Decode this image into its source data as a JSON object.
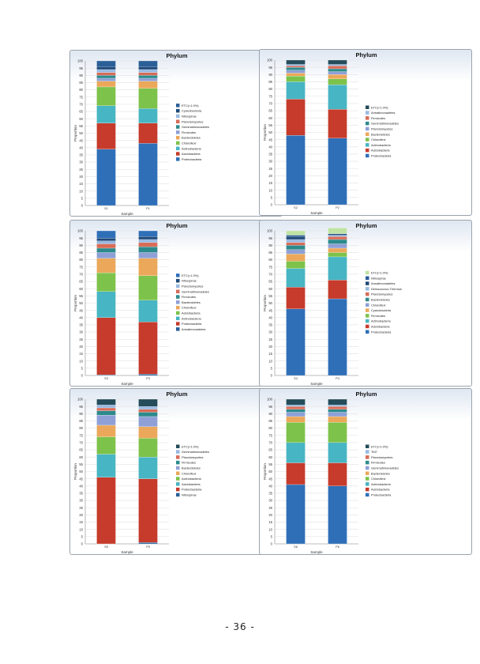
{
  "page": {
    "number": "- 36 -"
  },
  "chart_data": [
    {
      "type": "bar",
      "stacked": true,
      "title": "Phylum",
      "xlabel": "Sample",
      "ylabel": "Proportion",
      "ylim": [
        0,
        100
      ],
      "yticks_step": 5,
      "grid": true,
      "legend": "right",
      "categories": [
        "S1",
        "P1"
      ],
      "series": [
        {
          "name": "Proteobacteria",
          "color": "#2f6fb8",
          "values": [
            39,
            43
          ]
        },
        {
          "name": "Acidobacteria",
          "color": "#c63b2b",
          "values": [
            18,
            14
          ]
        },
        {
          "name": "Actinobacteria",
          "color": "#47b5c3",
          "values": [
            12,
            10
          ]
        },
        {
          "name": "Chloroflexi",
          "color": "#7dc24a",
          "values": [
            13,
            14
          ]
        },
        {
          "name": "Bacteroidetes",
          "color": "#eba85a",
          "values": [
            4,
            5
          ]
        },
        {
          "name": "Firmicutes",
          "color": "#8ea0d6",
          "values": [
            2,
            2
          ]
        },
        {
          "name": "Gemmatimonadetes",
          "color": "#2d8a8c",
          "values": [
            2,
            2
          ]
        },
        {
          "name": "Planctomycetes",
          "color": "#d86c57",
          "values": [
            2,
            2
          ]
        },
        {
          "name": "Nitrospirae",
          "color": "#98b9e2",
          "values": [
            2,
            2
          ]
        },
        {
          "name": "Cyanobacteria",
          "color": "#1f4a7a",
          "values": [
            2,
            2
          ]
        },
        {
          "name": "ETC(<1.0%)",
          "color": "#2b5f98",
          "values": [
            4,
            4
          ]
        }
      ]
    },
    {
      "type": "bar",
      "stacked": true,
      "title": "Phylum",
      "xlabel": "Sample",
      "ylabel": "Proportion",
      "ylim": [
        0,
        100
      ],
      "yticks_step": 5,
      "grid": true,
      "legend": "right",
      "categories": [
        "S2",
        "P2"
      ],
      "series": [
        {
          "name": "Proteobacteria",
          "color": "#2f6fb8",
          "values": [
            48,
            46
          ]
        },
        {
          "name": "Acidobacteria",
          "color": "#c63b2b",
          "values": [
            25,
            20
          ]
        },
        {
          "name": "Actinobacteria",
          "color": "#47b5c3",
          "values": [
            12,
            17
          ]
        },
        {
          "name": "Chloroflexi",
          "color": "#7dc24a",
          "values": [
            4,
            4
          ]
        },
        {
          "name": "Bacteroidetes",
          "color": "#eba85a",
          "values": [
            2,
            3
          ]
        },
        {
          "name": "Planctomycetes",
          "color": "#8ea0d6",
          "values": [
            2,
            2
          ]
        },
        {
          "name": "Gemmatimonadetes",
          "color": "#2d8a8c",
          "values": [
            2,
            2
          ]
        },
        {
          "name": "Firmicutes",
          "color": "#d86c57",
          "values": [
            1,
            2
          ]
        },
        {
          "name": "Armatimonadetes",
          "color": "#98b9e2",
          "values": [
            1,
            1
          ]
        },
        {
          "name": "ETC(<1.0%)",
          "color": "#244c5a",
          "values": [
            3,
            3
          ]
        }
      ]
    },
    {
      "type": "bar",
      "stacked": true,
      "title": "Phylum",
      "xlabel": "Sample",
      "ylabel": "Proportion",
      "ylim": [
        0,
        100
      ],
      "yticks_step": 5,
      "grid": true,
      "legend": "right",
      "categories": [
        "S3",
        "P3"
      ],
      "series": [
        {
          "name": "Armatimonadetes",
          "color": "#2b5f98",
          "values": [
            0.5,
            1
          ]
        },
        {
          "name": "Proteobacteria",
          "color": "#c63b2b",
          "values": [
            39.5,
            36
          ]
        },
        {
          "name": "Actinobacteria",
          "color": "#47b5c3",
          "values": [
            18,
            15
          ]
        },
        {
          "name": "Acidobacteria",
          "color": "#7dc24a",
          "values": [
            13,
            17
          ]
        },
        {
          "name": "Chloroflexi",
          "color": "#eba85a",
          "values": [
            10,
            12
          ]
        },
        {
          "name": "Bacteroidetes",
          "color": "#8ea0d6",
          "values": [
            4,
            4
          ]
        },
        {
          "name": "Firmicutes",
          "color": "#2d8a8c",
          "values": [
            3,
            4
          ]
        },
        {
          "name": "Gemmatimonadetes",
          "color": "#d86c57",
          "values": [
            3,
            3
          ]
        },
        {
          "name": "Planctomycetes",
          "color": "#98b9e2",
          "values": [
            2,
            2
          ]
        },
        {
          "name": "Nitrospirae",
          "color": "#1f4a7a",
          "values": [
            2,
            2
          ]
        },
        {
          "name": "ETC(<1.0%)",
          "color": "#2f6fb8",
          "values": [
            5,
            4
          ]
        }
      ]
    },
    {
      "type": "bar",
      "stacked": true,
      "title": "Phylum",
      "xlabel": "Sample",
      "ylabel": "Proportion",
      "ylim": [
        0,
        100
      ],
      "yticks_step": 5,
      "grid": true,
      "legend": "right",
      "categories": [
        "S4",
        "P4"
      ],
      "series": [
        {
          "name": "Proteobacteria",
          "color": "#2f6fb8",
          "values": [
            46,
            53
          ]
        },
        {
          "name": "Acidobacteria",
          "color": "#c63b2b",
          "values": [
            15,
            13
          ]
        },
        {
          "name": "Actinobacteria",
          "color": "#47b5c3",
          "values": [
            13,
            16
          ]
        },
        {
          "name": "Firmicutes",
          "color": "#7dc24a",
          "values": [
            5,
            3
          ]
        },
        {
          "name": "Cyanobacteria",
          "color": "#eba85a",
          "values": [
            5,
            3
          ]
        },
        {
          "name": "Chloroflexi",
          "color": "#8ea0d6",
          "values": [
            3,
            3
          ]
        },
        {
          "name": "Bacteroidetes",
          "color": "#2d8a8c",
          "values": [
            3,
            3
          ]
        },
        {
          "name": "Planctomycetes",
          "color": "#d86c57",
          "values": [
            2,
            2
          ]
        },
        {
          "name": "Deinococcus-Thermus",
          "color": "#98b9e2",
          "values": [
            2,
            1
          ]
        },
        {
          "name": "Armatimonadetes",
          "color": "#1f4a7a",
          "values": [
            2,
            1
          ]
        },
        {
          "name": "Nitrospirae",
          "color": "#2b5f98",
          "values": [
            1,
            0
          ]
        },
        {
          "name": "ETC(<1.0%)",
          "color": "#bfe3a2",
          "values": [
            3,
            4
          ]
        }
      ]
    },
    {
      "type": "bar",
      "stacked": true,
      "title": "Phylum",
      "xlabel": "Sample",
      "ylabel": "Proportion",
      "ylim": [
        0,
        100
      ],
      "yticks_step": 5,
      "grid": true,
      "legend": "right",
      "categories": [
        "S5",
        "P5"
      ],
      "series": [
        {
          "name": "Nitrospirae",
          "color": "#2b5f98",
          "values": [
            0,
            1
          ]
        },
        {
          "name": "Proteobacteria",
          "color": "#c63b2b",
          "values": [
            46,
            44
          ]
        },
        {
          "name": "Acidobacteria",
          "color": "#47b5c3",
          "values": [
            16,
            15
          ]
        },
        {
          "name": "Actinobacteria",
          "color": "#7dc24a",
          "values": [
            12,
            13
          ]
        },
        {
          "name": "Chloroflexi",
          "color": "#eba85a",
          "values": [
            8,
            8
          ]
        },
        {
          "name": "Bacteroidetes",
          "color": "#8ea0d6",
          "values": [
            7,
            7
          ]
        },
        {
          "name": "Firmicutes",
          "color": "#2d8a8c",
          "values": [
            3,
            3
          ]
        },
        {
          "name": "Planctomycetes",
          "color": "#d86c57",
          "values": [
            2,
            2
          ]
        },
        {
          "name": "Gemmatimonadetes",
          "color": "#98b9e2",
          "values": [
            2,
            2
          ]
        },
        {
          "name": "ETC(<1.0%)",
          "color": "#244c5a",
          "values": [
            4,
            5
          ]
        }
      ]
    },
    {
      "type": "bar",
      "stacked": true,
      "title": "Phylum",
      "xlabel": "Sample",
      "ylabel": "Proportion",
      "ylim": [
        0,
        100
      ],
      "yticks_step": 5,
      "grid": true,
      "legend": "right",
      "categories": [
        "S6",
        "P6"
      ],
      "series": [
        {
          "name": "Proteobacteria",
          "color": "#2f6fb8",
          "values": [
            41,
            40
          ]
        },
        {
          "name": "Acidobacteria",
          "color": "#c63b2b",
          "values": [
            15,
            16
          ]
        },
        {
          "name": "Actinobacteria",
          "color": "#47b5c3",
          "values": [
            14,
            14
          ]
        },
        {
          "name": "Chloroflexi",
          "color": "#7dc24a",
          "values": [
            14,
            14
          ]
        },
        {
          "name": "Bacteroidetes",
          "color": "#eba85a",
          "values": [
            4,
            4
          ]
        },
        {
          "name": "Gemmatimonadetes",
          "color": "#8ea0d6",
          "values": [
            3,
            3
          ]
        },
        {
          "name": "Firmicutes",
          "color": "#2d8a8c",
          "values": [
            2,
            2
          ]
        },
        {
          "name": "Planctomycetes",
          "color": "#d86c57",
          "values": [
            2,
            2
          ]
        },
        {
          "name": "TM7",
          "color": "#98b9e2",
          "values": [
            1,
            1
          ]
        },
        {
          "name": "ETC(<1.0%)",
          "color": "#244c5a",
          "values": [
            4,
            4
          ]
        }
      ]
    }
  ]
}
